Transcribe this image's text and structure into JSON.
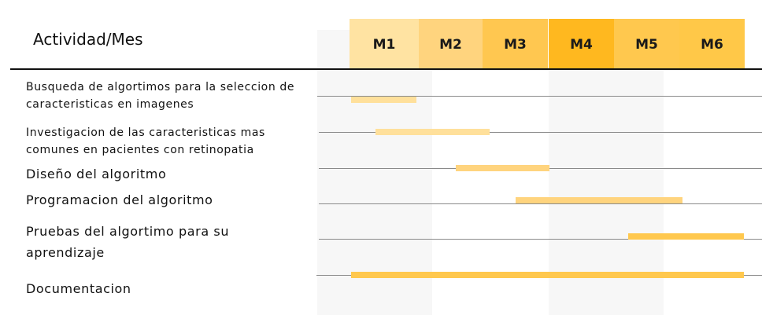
{
  "header": {
    "title": "Actividad/Mes"
  },
  "months": [
    {
      "label": "M1",
      "color": "#ffe3a2"
    },
    {
      "label": "M2",
      "color": "#ffd47e"
    },
    {
      "label": "M3",
      "color": "#ffc750"
    },
    {
      "label": "M4",
      "color": "#ffb81f"
    },
    {
      "label": "M5",
      "color": "#ffc84e"
    },
    {
      "label": "M6",
      "color": "#ffc848"
    }
  ],
  "tasks": [
    {
      "label": "Busqueda de algortimos para la seleccion de caracteristicas en imagenes",
      "bar_color": "#ffe09b"
    },
    {
      "label": "Investigacion de las caracteristicas mas comunes en pacientes con retinopatia",
      "bar_color": "#ffe09b"
    },
    {
      "label": "Diseño del algoritmo",
      "bar_color": "#ffd47e"
    },
    {
      "label": "Programacion del algoritmo",
      "bar_color": "#ffd47e"
    },
    {
      "label": "Pruebas del algortimo para su aprendizaje",
      "bar_color": "#ffc84e"
    },
    {
      "label": "Documentacion",
      "bar_color": "#ffc84e"
    }
  ]
}
